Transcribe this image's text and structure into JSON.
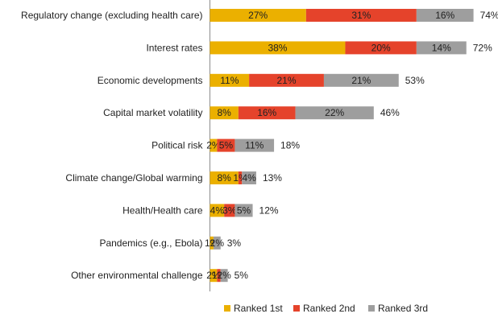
{
  "chart_data": {
    "type": "bar",
    "orientation": "horizontal",
    "stacked": true,
    "categories": [
      "Regulatory change (excluding health care)",
      "Interest rates",
      "Economic developments",
      "Capital market volatility",
      "Political risk",
      "Climate change/Global warming",
      "Health/Health care",
      "Pandemics (e.g., Ebola)",
      "Other environmental challenge"
    ],
    "series": [
      {
        "name": "Ranked 1st",
        "color": "#EBB000",
        "values": [
          27,
          38,
          11,
          8,
          2,
          8,
          4,
          1,
          2
        ]
      },
      {
        "name": "Ranked 2nd",
        "color": "#E5432B",
        "values": [
          31,
          20,
          21,
          16,
          5,
          1,
          3,
          0,
          1
        ]
      },
      {
        "name": "Ranked 3rd",
        "color": "#9E9E9E",
        "values": [
          16,
          14,
          21,
          22,
          11,
          4,
          5,
          2,
          2
        ]
      }
    ],
    "segment_labels": [
      [
        "27%",
        "31%",
        "16%"
      ],
      [
        "38%",
        "20%",
        "14%"
      ],
      [
        "11%",
        "21%",
        "21%"
      ],
      [
        "8%",
        "16%",
        "22%"
      ],
      [
        "2%",
        "5%",
        "11%"
      ],
      [
        "8%",
        "1%",
        "4%"
      ],
      [
        "4%",
        "3%",
        "5%"
      ],
      [
        "1%",
        "",
        "2%"
      ],
      [
        "2%",
        "1%",
        "2%"
      ]
    ],
    "totals": [
      "74%",
      "72%",
      "53%",
      "46%",
      "18%",
      "13%",
      "12%",
      "3%",
      "5%"
    ],
    "xlim": [
      0,
      80
    ],
    "grid": false,
    "legend_position": "bottom"
  }
}
